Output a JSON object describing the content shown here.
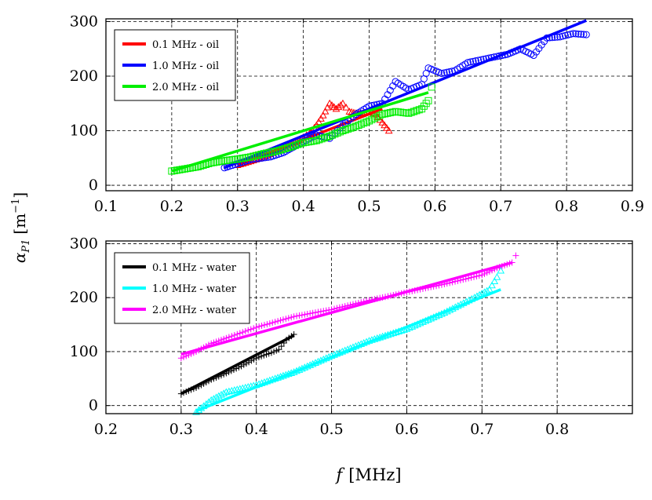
{
  "figure": {
    "ylabel_main": "α",
    "ylabel_sub": "P1",
    "ylabel_unit": "[m",
    "ylabel_exp": "−1",
    "ylabel_close": "]",
    "xlabel_main": "f",
    "xlabel_unit": "[MHz]"
  },
  "chart_data": [
    {
      "type": "line",
      "xlim": [
        0.1,
        0.9
      ],
      "ylim": [
        -10,
        305
      ],
      "xticks": [
        0.1,
        0.2,
        0.3,
        0.4,
        0.5,
        0.6,
        0.7,
        0.8,
        0.9
      ],
      "xtick_labels": [
        "0.1",
        "0.2",
        "0.3",
        "0.4",
        "0.5",
        "0.6",
        "0.7",
        "0.8",
        "0.9"
      ],
      "yticks": [
        0,
        100,
        200,
        300
      ],
      "ytick_labels": [
        "0",
        "100",
        "200",
        "300"
      ],
      "grid": true,
      "legend_position": "top-left",
      "series": [
        {
          "name": "0.1 MHz - oil",
          "color": "#ff0000",
          "marker": "triangle",
          "points": [
            [
              0.3,
              37
            ],
            [
              0.32,
              44
            ],
            [
              0.34,
              52
            ],
            [
              0.36,
              64
            ],
            [
              0.38,
              75
            ],
            [
              0.39,
              80
            ],
            [
              0.4,
              88
            ],
            [
              0.41,
              96
            ],
            [
              0.42,
              110
            ],
            [
              0.43,
              128
            ],
            [
              0.44,
              150
            ],
            [
              0.45,
              140
            ],
            [
              0.46,
              150
            ],
            [
              0.47,
              135
            ],
            [
              0.48,
              132
            ],
            [
              0.49,
              132
            ],
            [
              0.5,
              135
            ],
            [
              0.51,
              130
            ],
            [
              0.52,
              115
            ],
            [
              0.53,
              100
            ]
          ],
          "fit": [
            [
              0.3,
              37
            ],
            [
              0.52,
              140
            ]
          ]
        },
        {
          "name": "1.0 MHz - oil",
          "color": "#0000ff",
          "marker": "circle",
          "points": [
            [
              0.28,
              32
            ],
            [
              0.32,
              47
            ],
            [
              0.35,
              52
            ],
            [
              0.37,
              60
            ],
            [
              0.4,
              80
            ],
            [
              0.42,
              92
            ],
            [
              0.44,
              86
            ],
            [
              0.46,
              110
            ],
            [
              0.48,
              130
            ],
            [
              0.5,
              145
            ],
            [
              0.52,
              150
            ],
            [
              0.54,
              190
            ],
            [
              0.56,
              175
            ],
            [
              0.58,
              185
            ],
            [
              0.59,
              215
            ],
            [
              0.61,
              205
            ],
            [
              0.63,
              210
            ],
            [
              0.65,
              225
            ],
            [
              0.67,
              230
            ],
            [
              0.69,
              235
            ],
            [
              0.71,
              240
            ],
            [
              0.73,
              250
            ],
            [
              0.75,
              238
            ],
            [
              0.77,
              270
            ],
            [
              0.79,
              272
            ],
            [
              0.81,
              278
            ],
            [
              0.83,
              276
            ]
          ],
          "fit": [
            [
              0.28,
              32
            ],
            [
              0.83,
              302
            ]
          ]
        },
        {
          "name": "2.0 MHz - oil",
          "color": "#00ee00",
          "marker": "square",
          "points": [
            [
              0.2,
              26
            ],
            [
              0.22,
              30
            ],
            [
              0.24,
              34
            ],
            [
              0.26,
              41
            ],
            [
              0.28,
              45
            ],
            [
              0.3,
              48
            ],
            [
              0.32,
              52
            ],
            [
              0.34,
              58
            ],
            [
              0.36,
              63
            ],
            [
              0.38,
              70
            ],
            [
              0.4,
              78
            ],
            [
              0.42,
              82
            ],
            [
              0.44,
              90
            ],
            [
              0.46,
              100
            ],
            [
              0.48,
              108
            ],
            [
              0.5,
              118
            ],
            [
              0.52,
              130
            ],
            [
              0.54,
              135
            ],
            [
              0.56,
              132
            ],
            [
              0.58,
              140
            ],
            [
              0.59,
              155
            ],
            [
              0.595,
              180
            ]
          ],
          "fit": [
            [
              0.2,
              26
            ],
            [
              0.59,
              170
            ]
          ]
        }
      ]
    },
    {
      "type": "line",
      "xlim": [
        0.2,
        0.9
      ],
      "ylim": [
        -15,
        305
      ],
      "xticks": [
        0.2,
        0.3,
        0.4,
        0.5,
        0.6,
        0.7,
        0.8
      ],
      "xtick_labels": [
        "0.2",
        "0.3",
        "0.4",
        "0.5",
        "0.6",
        "0.7",
        "0.8"
      ],
      "yticks": [
        0,
        100,
        200,
        300
      ],
      "ytick_labels": [
        "0",
        "100",
        "200",
        "300"
      ],
      "grid": true,
      "legend_position": "top-left",
      "series": [
        {
          "name": "0.1 MHz - water",
          "color": "#000000",
          "marker": "plus",
          "points": [
            [
              0.3,
              22
            ],
            [
              0.32,
              33
            ],
            [
              0.34,
              48
            ],
            [
              0.36,
              60
            ],
            [
              0.38,
              73
            ],
            [
              0.4,
              88
            ],
            [
              0.42,
              98
            ],
            [
              0.43,
              104
            ],
            [
              0.44,
              122
            ],
            [
              0.45,
              132
            ]
          ],
          "fit": [
            [
              0.3,
              22
            ],
            [
              0.45,
              130
            ]
          ]
        },
        {
          "name": "1.0 MHz - water",
          "color": "#00ffff",
          "marker": "triangle",
          "points": [
            [
              0.32,
              -12
            ],
            [
              0.34,
              10
            ],
            [
              0.36,
              25
            ],
            [
              0.4,
              38
            ],
            [
              0.45,
              62
            ],
            [
              0.5,
              92
            ],
            [
              0.55,
              120
            ],
            [
              0.6,
              142
            ],
            [
              0.65,
              172
            ],
            [
              0.69,
              200
            ],
            [
              0.71,
              215
            ],
            [
              0.72,
              238
            ],
            [
              0.725,
              250
            ]
          ],
          "fit": [
            [
              0.32,
              -10
            ],
            [
              0.725,
              215
            ]
          ]
        },
        {
          "name": "2.0 MHz - water",
          "color": "#ff00ff",
          "marker": "plus",
          "points": [
            [
              0.3,
              88
            ],
            [
              0.32,
              100
            ],
            [
              0.34,
              115
            ],
            [
              0.36,
              125
            ],
            [
              0.4,
              145
            ],
            [
              0.45,
              165
            ],
            [
              0.5,
              178
            ],
            [
              0.55,
              195
            ],
            [
              0.6,
              210
            ],
            [
              0.65,
              225
            ],
            [
              0.7,
              242
            ],
            [
              0.72,
              255
            ],
            [
              0.74,
              265
            ],
            [
              0.745,
              278
            ]
          ],
          "fit": [
            [
              0.3,
              95
            ],
            [
              0.74,
              265
            ]
          ]
        }
      ]
    }
  ]
}
